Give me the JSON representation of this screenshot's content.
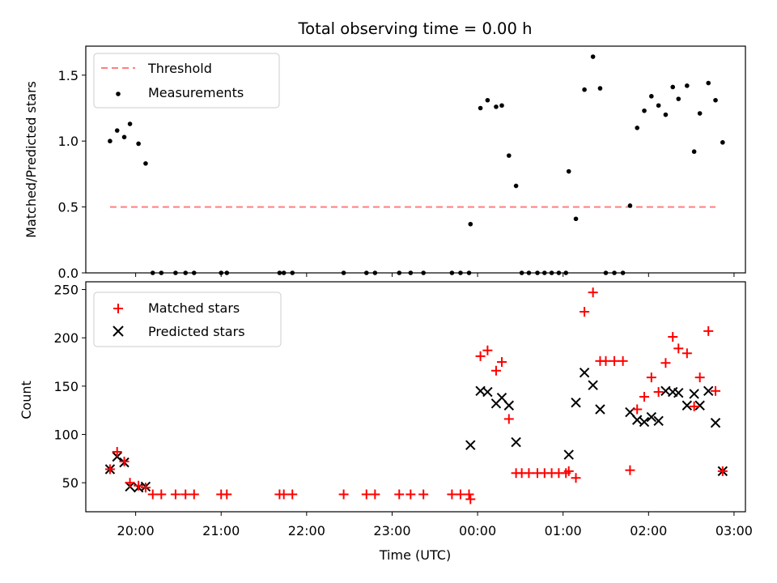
{
  "title": "Total observing time = 0.00 h",
  "xlabel": "Time (UTC)",
  "x_ticks": [
    {
      "t": "20:00",
      "label": "20:00"
    },
    {
      "t": "21:00",
      "label": "21:00"
    },
    {
      "t": "22:00",
      "label": "22:00"
    },
    {
      "t": "23:00",
      "label": "23:00"
    },
    {
      "t": "00:00",
      "label": "00:00"
    },
    {
      "t": "01:00",
      "label": "01:00"
    },
    {
      "t": "02:00",
      "label": "02:00"
    },
    {
      "t": "03:00",
      "label": "03:00"
    }
  ],
  "chart_data": [
    {
      "type": "scatter",
      "ylabel": "Matched/Predicted stars",
      "ylim": [
        0,
        1.72
      ],
      "xlim": [
        "19:25",
        "03:08"
      ],
      "y_ticks": [
        "0.0",
        "0.5",
        "1.0",
        "1.5"
      ],
      "legend": {
        "placement": "top-left",
        "entries": [
          "Threshold",
          "Measurements"
        ]
      },
      "threshold": {
        "name": "Threshold",
        "y": 0.5,
        "x_start": "19:42",
        "x_end": "02:47",
        "color": "#ff7f7f"
      },
      "series": [
        {
          "name": "Measurements",
          "color": "#000000",
          "points": [
            [
              "19:42",
              1.0
            ],
            [
              "19:47",
              1.08
            ],
            [
              "19:52",
              1.03
            ],
            [
              "19:56",
              1.13
            ],
            [
              "20:02",
              0.98
            ],
            [
              "20:07",
              0.83
            ],
            [
              "20:12",
              0.0
            ],
            [
              "20:18",
              0.0
            ],
            [
              "20:28",
              0.0
            ],
            [
              "20:35",
              0.0
            ],
            [
              "20:41",
              0.0
            ],
            [
              "21:00",
              0.0
            ],
            [
              "21:04",
              0.0
            ],
            [
              "21:41",
              0.0
            ],
            [
              "21:44",
              0.0
            ],
            [
              "21:50",
              0.0
            ],
            [
              "22:26",
              0.0
            ],
            [
              "22:42",
              0.0
            ],
            [
              "22:48",
              0.0
            ],
            [
              "23:05",
              0.0
            ],
            [
              "23:13",
              0.0
            ],
            [
              "23:22",
              0.0
            ],
            [
              "23:42",
              0.0
            ],
            [
              "23:48",
              0.0
            ],
            [
              "23:54",
              0.0
            ],
            [
              "23:55",
              0.37
            ],
            [
              "00:02",
              1.25
            ],
            [
              "00:07",
              1.31
            ],
            [
              "00:13",
              1.26
            ],
            [
              "00:17",
              1.27
            ],
            [
              "00:22",
              0.89
            ],
            [
              "00:27",
              0.66
            ],
            [
              "00:31",
              0.0
            ],
            [
              "00:36",
              0.0
            ],
            [
              "00:42",
              0.0
            ],
            [
              "00:47",
              0.0
            ],
            [
              "00:52",
              0.0
            ],
            [
              "00:57",
              0.0
            ],
            [
              "01:02",
              0.0
            ],
            [
              "01:04",
              0.77
            ],
            [
              "01:09",
              0.41
            ],
            [
              "01:15",
              1.39
            ],
            [
              "01:21",
              1.64
            ],
            [
              "01:26",
              1.4
            ],
            [
              "01:30",
              0.0
            ],
            [
              "01:36",
              0.0
            ],
            [
              "01:42",
              0.0
            ],
            [
              "01:47",
              0.51
            ],
            [
              "01:52",
              1.1
            ],
            [
              "01:57",
              1.23
            ],
            [
              "02:02",
              1.34
            ],
            [
              "02:07",
              1.27
            ],
            [
              "02:12",
              1.2
            ],
            [
              "02:17",
              1.41
            ],
            [
              "02:21",
              1.32
            ],
            [
              "02:27",
              1.42
            ],
            [
              "02:32",
              0.92
            ],
            [
              "02:36",
              1.21
            ],
            [
              "02:42",
              1.44
            ],
            [
              "02:47",
              1.31
            ],
            [
              "02:52",
              0.99
            ]
          ]
        }
      ]
    },
    {
      "type": "scatter",
      "ylabel": "Count",
      "ylim": [
        20,
        258
      ],
      "xlim": [
        "19:25",
        "03:08"
      ],
      "y_ticks": [
        "50",
        "100",
        "150",
        "200",
        "250"
      ],
      "legend": {
        "placement": "top-left",
        "entries": [
          "Matched stars",
          "Predicted stars"
        ]
      },
      "series": [
        {
          "name": "Matched stars",
          "marker": "+",
          "color": "#ff0000",
          "points": [
            [
              "19:42",
              64
            ],
            [
              "19:47",
              82
            ],
            [
              "19:52",
              72
            ],
            [
              "19:56",
              50
            ],
            [
              "20:02",
              47
            ],
            [
              "20:07",
              45
            ],
            [
              "20:12",
              38
            ],
            [
              "20:18",
              38
            ],
            [
              "20:28",
              38
            ],
            [
              "20:35",
              38
            ],
            [
              "20:41",
              38
            ],
            [
              "21:00",
              38
            ],
            [
              "21:04",
              38
            ],
            [
              "21:41",
              38
            ],
            [
              "21:44",
              38
            ],
            [
              "21:50",
              38
            ],
            [
              "22:26",
              38
            ],
            [
              "22:42",
              38
            ],
            [
              "22:48",
              38
            ],
            [
              "23:05",
              38
            ],
            [
              "23:13",
              38
            ],
            [
              "23:22",
              38
            ],
            [
              "23:42",
              38
            ],
            [
              "23:48",
              38
            ],
            [
              "23:54",
              38
            ],
            [
              "23:55",
              33
            ],
            [
              "00:02",
              181
            ],
            [
              "00:07",
              187
            ],
            [
              "00:13",
              166
            ],
            [
              "00:17",
              175
            ],
            [
              "00:22",
              116
            ],
            [
              "00:27",
              60
            ],
            [
              "00:31",
              60
            ],
            [
              "00:36",
              60
            ],
            [
              "00:42",
              60
            ],
            [
              "00:47",
              60
            ],
            [
              "00:52",
              60
            ],
            [
              "00:57",
              60
            ],
            [
              "01:02",
              60
            ],
            [
              "01:04",
              62
            ],
            [
              "01:09",
              55
            ],
            [
              "01:15",
              227
            ],
            [
              "01:21",
              247
            ],
            [
              "01:26",
              176
            ],
            [
              "01:30",
              176
            ],
            [
              "01:36",
              176
            ],
            [
              "01:42",
              176
            ],
            [
              "01:47",
              63
            ],
            [
              "01:52",
              126
            ],
            [
              "01:57",
              139
            ],
            [
              "02:02",
              159
            ],
            [
              "02:07",
              144
            ],
            [
              "02:12",
              174
            ],
            [
              "02:17",
              201
            ],
            [
              "02:21",
              189
            ],
            [
              "02:27",
              184
            ],
            [
              "02:32",
              129
            ],
            [
              "02:36",
              159
            ],
            [
              "02:42",
              207
            ],
            [
              "02:47",
              145
            ],
            [
              "02:52",
              62
            ]
          ]
        },
        {
          "name": "Predicted stars",
          "marker": "x",
          "color": "#000000",
          "points": [
            [
              "19:42",
              64
            ],
            [
              "19:47",
              77
            ],
            [
              "19:52",
              71
            ],
            [
              "19:56",
              46
            ],
            [
              "20:02",
              45
            ],
            [
              "20:07",
              46
            ],
            [
              "23:55",
              89
            ],
            [
              "00:02",
              145
            ],
            [
              "00:07",
              144
            ],
            [
              "00:13",
              132
            ],
            [
              "00:17",
              138
            ],
            [
              "00:22",
              130
            ],
            [
              "00:27",
              92
            ],
            [
              "01:04",
              79
            ],
            [
              "01:09",
              133
            ],
            [
              "01:15",
              164
            ],
            [
              "01:21",
              151
            ],
            [
              "01:26",
              126
            ],
            [
              "01:47",
              123
            ],
            [
              "01:52",
              115
            ],
            [
              "01:57",
              113
            ],
            [
              "02:02",
              118
            ],
            [
              "02:07",
              114
            ],
            [
              "02:12",
              145
            ],
            [
              "02:17",
              144
            ],
            [
              "02:21",
              143
            ],
            [
              "02:27",
              130
            ],
            [
              "02:32",
              142
            ],
            [
              "02:36",
              130
            ],
            [
              "02:42",
              145
            ],
            [
              "02:47",
              112
            ],
            [
              "02:52",
              62
            ]
          ]
        }
      ]
    }
  ]
}
